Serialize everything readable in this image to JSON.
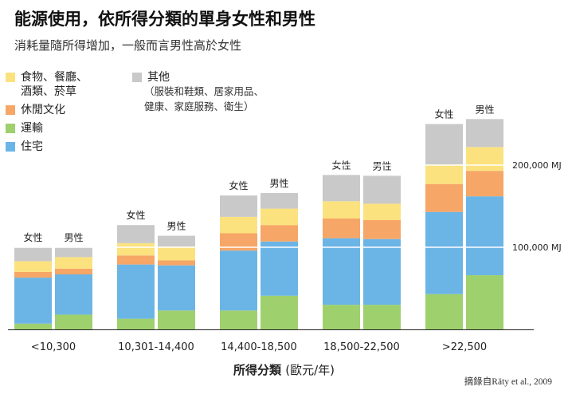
{
  "title": "能源使用，依所得分類的單身女性和男性",
  "subtitle": "消耗量隨所得增加，一般而言男性高於女性",
  "legend": [
    {
      "label": "食物、餐廳、\n酒類、菸草",
      "color": "#fbe27e"
    },
    {
      "label": "休閒文化",
      "color": "#f6a666"
    },
    {
      "label": "運輸",
      "color": "#9fd06e"
    },
    {
      "label": "住宅",
      "color": "#6bb5e6"
    },
    {
      "label": "其他",
      "color": "#c9c9c9"
    }
  ],
  "legend_note": "（服裝和鞋類、居家用品、\n健康、家庭服務、衛生）",
  "x_axis": {
    "label": "所得分類",
    "unit": "(歐元/年)"
  },
  "source": "摘錄自Räty et al., 2009",
  "chart_data": {
    "type": "bar",
    "stacked": true,
    "categories": [
      "<10,300",
      "10,301-14,400",
      "14,400-18,500",
      "18,500-22,500",
      ">22,500"
    ],
    "groups": [
      "女性",
      "男性"
    ],
    "stack_order": [
      "運輸",
      "住宅",
      "休閒文化",
      "食物、餐廳、酒類、菸草",
      "其他"
    ],
    "values": {
      "女性": {
        "運輸": [
          7000,
          13000,
          23000,
          30000,
          43000
        ],
        "住宅": [
          56000,
          66000,
          73000,
          81000,
          100000
        ],
        "休閒文化": [
          7000,
          11000,
          21000,
          24000,
          34000
        ],
        "食物、餐廳、酒類、菸草": [
          13000,
          15000,
          20000,
          21000,
          24000
        ],
        "其他": [
          17000,
          22000,
          26000,
          32000,
          49000
        ]
      },
      "男性": {
        "運輸": [
          18000,
          23000,
          41000,
          30000,
          66000
        ],
        "住宅": [
          49000,
          55000,
          66000,
          80000,
          96000
        ],
        "休閒文化": [
          7000,
          6000,
          20000,
          23000,
          31000
        ],
        "食物、餐廳、酒類、菸草": [
          14000,
          17000,
          20000,
          20000,
          29000
        ],
        "其他": [
          12000,
          13000,
          19000,
          34000,
          34000
        ]
      }
    },
    "reference_lines": [
      {
        "value": 100000,
        "label": "100,000 MJ"
      },
      {
        "value": 200000,
        "label": "200,000 MJ"
      }
    ],
    "ylim": [
      0,
      260000
    ]
  }
}
